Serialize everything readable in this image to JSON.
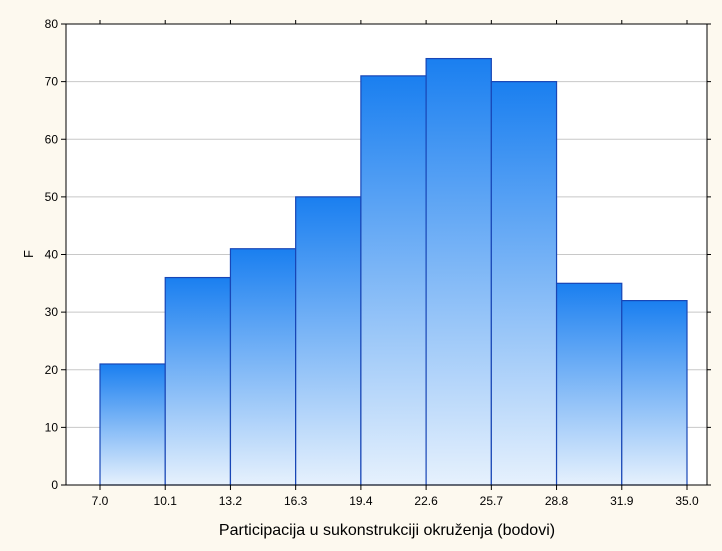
{
  "chart_data": {
    "type": "bar",
    "subtype": "histogram",
    "bin_edges": [
      "7.0",
      "10.1",
      "13.2",
      "16.3",
      "19.4",
      "22.6",
      "25.7",
      "28.8",
      "31.9",
      "35.0"
    ],
    "values": [
      21,
      36,
      41,
      50,
      71,
      74,
      70,
      35,
      32
    ],
    "xlabel": "Participacija u sukonstrukciji okruženja (bodovi)",
    "ylabel": "F",
    "ylim": [
      0,
      80
    ],
    "yticks": [
      0,
      10,
      20,
      30,
      40,
      50,
      60,
      70,
      80
    ],
    "grid": true,
    "legend": "none",
    "colors": {
      "bar_top": "#1a7ff0",
      "bar_bottom": "#e6f1fd",
      "bar_edge": "#1846b6",
      "plot_bg": "#ffffff",
      "page_bg": "#fdf9ef",
      "grid": "#c8c8c8"
    }
  }
}
